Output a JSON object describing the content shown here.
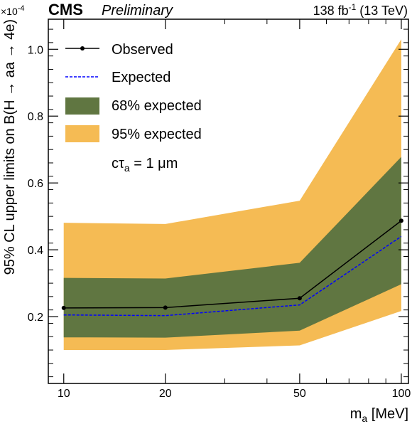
{
  "header": {
    "experiment": "CMS",
    "status": "Preliminary",
    "lumi": "138 fb",
    "lumi_exp": "-1",
    "energy": " (13 TeV)",
    "exponent": "×10",
    "exponent_power": "-4"
  },
  "colors": {
    "band95": "#F5BB54",
    "band68": "#607641",
    "observed": "#000000",
    "expected": "#0000FF"
  },
  "legend": {
    "observed": "Observed",
    "expected": "Expected",
    "band68": "68% expected",
    "band95": "95% expected",
    "ctau_main": "cτ",
    "ctau_sub": "a",
    "ctau_value": " = 1 μm"
  },
  "chart_data": {
    "type": "line",
    "xscale": "log",
    "xlabel": "m",
    "xlabel_sub": "a",
    "xlabel_unit": " [MeV]",
    "ylabel": "95% CL upper limits on B(H → aa → 4e)",
    "xlim": [
      9,
      105
    ],
    "ylim": [
      0.0,
      1.09
    ],
    "y_multiplier": "1e-4",
    "x_ticks": [
      10,
      20,
      50,
      100
    ],
    "y_ticks": [
      0.2,
      0.4,
      0.6,
      0.8,
      1.0
    ],
    "x": [
      10,
      20,
      50,
      100
    ],
    "series": [
      {
        "name": "Observed",
        "values": [
          0.226,
          0.227,
          0.255,
          0.487
        ]
      },
      {
        "name": "Expected",
        "values": [
          0.205,
          0.203,
          0.235,
          0.44
        ]
      }
    ],
    "band68": {
      "lower": [
        0.138,
        0.137,
        0.158,
        0.297
      ],
      "upper": [
        0.316,
        0.314,
        0.361,
        0.678
      ]
    },
    "band95": {
      "lower": [
        0.1,
        0.1,
        0.114,
        0.217
      ],
      "upper": [
        0.481,
        0.477,
        0.547,
        1.03
      ]
    },
    "legend_position": "top-left",
    "grid": false
  }
}
